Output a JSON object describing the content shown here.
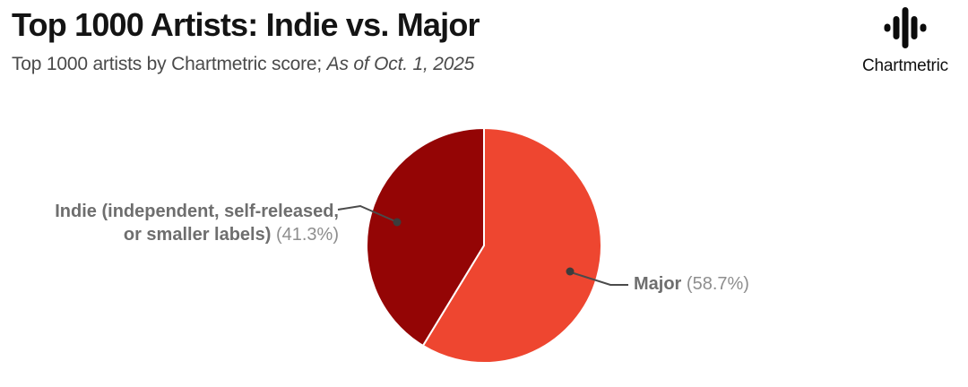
{
  "header": {
    "title": "Top 1000 Artists: Indie vs. Major",
    "subtitle_regular": "Top 1000 artists by Chartmetric score; ",
    "subtitle_italic": "As of Oct. 1, 2025"
  },
  "logo": {
    "text": "Chartmetric"
  },
  "colors": {
    "major_slice": "#EE4630",
    "indie_slice": "#940505",
    "leader_line": "#4A4A4A",
    "leader_dot": "#3C3C3C",
    "label_bold_gray": "#6E6E6E",
    "label_pct_gray": "#8E8E8E",
    "title_text": "#141414",
    "subtitle_text": "#4A4A4A",
    "background": "#FFFFFF"
  },
  "callouts": {
    "indie": {
      "line1": "Indie (independent, self-released,",
      "line2": "or smaller labels)",
      "pct": "(41.3%)"
    },
    "major": {
      "name": "Major",
      "pct": "(58.7%)"
    }
  },
  "chart_data": {
    "type": "pie",
    "title": "Top 1000 Artists: Indie vs. Major",
    "subtitle": "Top 1000 artists by Chartmetric score; As of Oct. 1, 2025",
    "units": "percent of top 1000 artists",
    "start_angle_deg": 0,
    "direction": "clockwise",
    "legend": "none",
    "label_style": "outside-with-leader-lines",
    "slices": [
      {
        "id": "major",
        "label": "Major",
        "value": 58.7,
        "color": "#EE4630"
      },
      {
        "id": "indie",
        "label": "Indie (independent, self-released, or smaller labels)",
        "value": 41.3,
        "color": "#940505"
      }
    ]
  }
}
